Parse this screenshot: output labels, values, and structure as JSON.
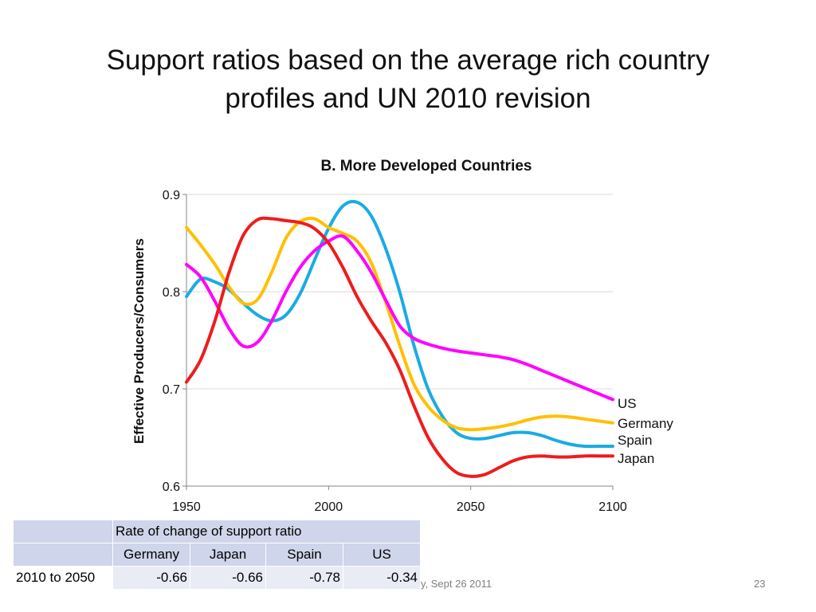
{
  "slide": {
    "title_line1": "Support ratios based on the average rich country",
    "title_line2": "profiles and UN 2010 revision",
    "footer_text": "y, Sept 26 2011",
    "page_number": "23"
  },
  "chart_data": {
    "type": "line",
    "title": "B.  More Developed Countries",
    "xlabel": "",
    "ylabel": "Effective Producers/Consumers",
    "xlim": [
      1950,
      2100
    ],
    "ylim": [
      0.6,
      0.9
    ],
    "x_ticks": [
      1950,
      2000,
      2050,
      2100
    ],
    "x_tick_labels": [
      "1950",
      "2000",
      "2050",
      "2100"
    ],
    "y_ticks": [
      0.6,
      0.7,
      0.8,
      0.9
    ],
    "y_tick_labels": [
      "0.6",
      "0.7",
      "0.8",
      "0.9"
    ],
    "grid": "horizontal",
    "legend": "end-of-line labels",
    "series": [
      {
        "name": "US",
        "color": "#ff00ff",
        "x": [
          1950,
          1955,
          1960,
          1965,
          1970,
          1975,
          1980,
          1985,
          1990,
          1995,
          2000,
          2005,
          2010,
          2015,
          2020,
          2025,
          2030,
          2035,
          2040,
          2045,
          2050,
          2055,
          2060,
          2065,
          2070,
          2075,
          2080,
          2085,
          2090,
          2095,
          2100
        ],
        "y": [
          0.828,
          0.815,
          0.79,
          0.762,
          0.744,
          0.748,
          0.77,
          0.8,
          0.825,
          0.842,
          0.852,
          0.857,
          0.842,
          0.82,
          0.792,
          0.765,
          0.752,
          0.746,
          0.742,
          0.739,
          0.737,
          0.735,
          0.733,
          0.73,
          0.725,
          0.719,
          0.713,
          0.707,
          0.701,
          0.695,
          0.689
        ]
      },
      {
        "name": "Germany",
        "color": "#ffc000",
        "x": [
          1950,
          1955,
          1960,
          1965,
          1970,
          1975,
          1980,
          1985,
          1990,
          1995,
          2000,
          2005,
          2010,
          2015,
          2020,
          2025,
          2030,
          2035,
          2040,
          2045,
          2050,
          2055,
          2060,
          2065,
          2070,
          2075,
          2080,
          2085,
          2090,
          2095,
          2100
        ],
        "y": [
          0.866,
          0.848,
          0.828,
          0.805,
          0.788,
          0.792,
          0.82,
          0.855,
          0.872,
          0.875,
          0.866,
          0.86,
          0.852,
          0.83,
          0.79,
          0.745,
          0.705,
          0.682,
          0.668,
          0.66,
          0.658,
          0.659,
          0.661,
          0.664,
          0.668,
          0.671,
          0.672,
          0.671,
          0.669,
          0.667,
          0.665
        ]
      },
      {
        "name": "Spain",
        "color": "#1aabe3",
        "x": [
          1950,
          1955,
          1960,
          1965,
          1970,
          1975,
          1980,
          1985,
          1990,
          1995,
          2000,
          2005,
          2010,
          2015,
          2020,
          2025,
          2030,
          2035,
          2040,
          2045,
          2050,
          2055,
          2060,
          2065,
          2070,
          2075,
          2080,
          2085,
          2090,
          2095,
          2100
        ],
        "y": [
          0.795,
          0.813,
          0.81,
          0.802,
          0.788,
          0.776,
          0.77,
          0.776,
          0.798,
          0.832,
          0.865,
          0.888,
          0.892,
          0.878,
          0.845,
          0.8,
          0.745,
          0.7,
          0.672,
          0.655,
          0.649,
          0.649,
          0.652,
          0.655,
          0.655,
          0.652,
          0.647,
          0.643,
          0.641,
          0.641,
          0.641
        ]
      },
      {
        "name": "Japan",
        "color": "#ee1c1c",
        "x": [
          1950,
          1955,
          1960,
          1965,
          1970,
          1975,
          1980,
          1985,
          1990,
          1995,
          2000,
          2005,
          2010,
          2015,
          2020,
          2025,
          2030,
          2035,
          2040,
          2045,
          2050,
          2055,
          2060,
          2065,
          2070,
          2075,
          2080,
          2085,
          2090,
          2095,
          2100
        ],
        "y": [
          0.707,
          0.73,
          0.77,
          0.82,
          0.858,
          0.874,
          0.875,
          0.873,
          0.871,
          0.865,
          0.85,
          0.825,
          0.795,
          0.77,
          0.748,
          0.72,
          0.683,
          0.65,
          0.628,
          0.614,
          0.61,
          0.612,
          0.619,
          0.626,
          0.63,
          0.631,
          0.63,
          0.63,
          0.631,
          0.631,
          0.631
        ]
      }
    ]
  },
  "table": {
    "header_span": "Rate of change of support ratio",
    "columns": [
      "Germany",
      "Japan",
      "Spain",
      "US"
    ],
    "row_label": "2010 to 2050",
    "values": [
      "-0.66",
      "-0.66",
      "-0.78",
      "-0.34"
    ]
  }
}
